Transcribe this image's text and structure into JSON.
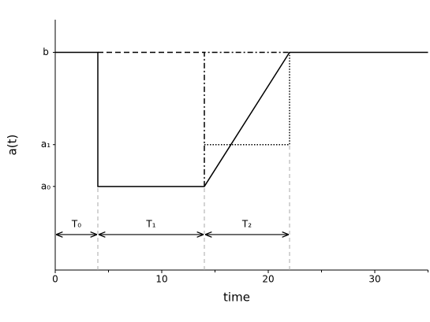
{
  "chart_data": {
    "type": "line",
    "xlabel": "time",
    "ylabel": "a(t)",
    "xlim": [
      0,
      35
    ],
    "xticks": [
      0,
      10,
      20,
      30
    ],
    "xminor": [
      5,
      15,
      25,
      35
    ],
    "ylim": [
      0,
      1.15
    ],
    "yticks": [
      {
        "value": 0.384,
        "label": "a₀"
      },
      {
        "value": 0.576,
        "label": "a₁"
      },
      {
        "value": 1,
        "label": "b"
      }
    ],
    "series": [
      {
        "style": "solid",
        "color": "#000000",
        "x": [
          0,
          4,
          4,
          14,
          22,
          35
        ],
        "values": [
          1,
          1,
          0.384,
          0.384,
          1,
          1
        ]
      },
      {
        "style": "dashed",
        "color": "#000000",
        "x": [
          4,
          14
        ],
        "values": [
          1,
          1
        ]
      },
      {
        "style": "dashdot",
        "color": "#000000",
        "x": [
          14,
          14,
          22
        ],
        "values": [
          0.384,
          1,
          1
        ]
      },
      {
        "style": "dotted",
        "color": "#000000",
        "x": [
          14,
          22,
          22
        ],
        "values": [
          0.576,
          0.576,
          1
        ]
      },
      {
        "style": "guide",
        "color": "#aaaaaa",
        "x": [
          4,
          4,
          null,
          14,
          14,
          null,
          22,
          22
        ],
        "values": [
          0,
          0.384,
          null,
          0,
          0.384,
          null,
          0,
          0.576
        ]
      }
    ],
    "annotations": [
      {
        "text": "T₀",
        "x": [
          0,
          4
        ],
        "y": 0.163
      },
      {
        "text": "T₁",
        "x": [
          4,
          14
        ],
        "y": 0.163
      },
      {
        "text": "T₂",
        "x": [
          14,
          22
        ],
        "y": 0.163
      }
    ]
  }
}
